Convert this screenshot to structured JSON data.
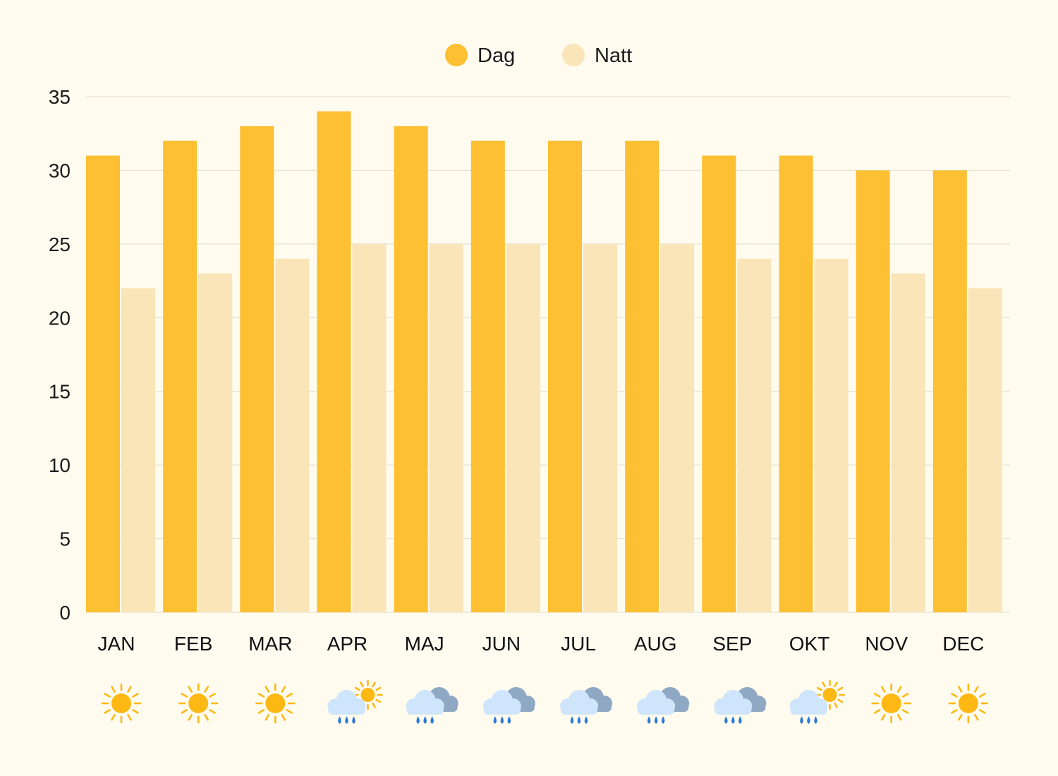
{
  "colors": {
    "background": "#fffbef",
    "day": "#fdc032",
    "night": "#f9e5b8",
    "grid": "#e6e1d2",
    "sun": "#fdb813",
    "cloud_light": "#cfe5fb",
    "cloud_dark": "#8fa8c3",
    "rain": "#2f7ad6"
  },
  "chart_data": {
    "type": "bar",
    "categories": [
      "JAN",
      "FEB",
      "MAR",
      "APR",
      "MAJ",
      "JUN",
      "JUL",
      "AUG",
      "SEP",
      "OKT",
      "NOV",
      "DEC"
    ],
    "series": [
      {
        "name": "Dag",
        "values": [
          31,
          32,
          33,
          34,
          33,
          32,
          32,
          32,
          31,
          31,
          30,
          30
        ]
      },
      {
        "name": "Natt",
        "values": [
          22,
          23,
          24,
          25,
          25,
          25,
          25,
          25,
          24,
          24,
          23,
          22
        ]
      }
    ],
    "yticks": [
      "0",
      "5",
      "10",
      "15",
      "20",
      "25",
      "30",
      "35"
    ],
    "ylim": [
      0,
      35
    ],
    "grid": true,
    "legend_position": "top-center",
    "weather_icons": [
      "sun-icon",
      "sun-icon",
      "sun-icon",
      "rain-sun-icon",
      "rain-cloud-icon",
      "rain-cloud-icon",
      "rain-cloud-icon",
      "rain-cloud-icon",
      "rain-cloud-icon",
      "rain-sun-icon",
      "sun-icon",
      "sun-icon"
    ]
  }
}
